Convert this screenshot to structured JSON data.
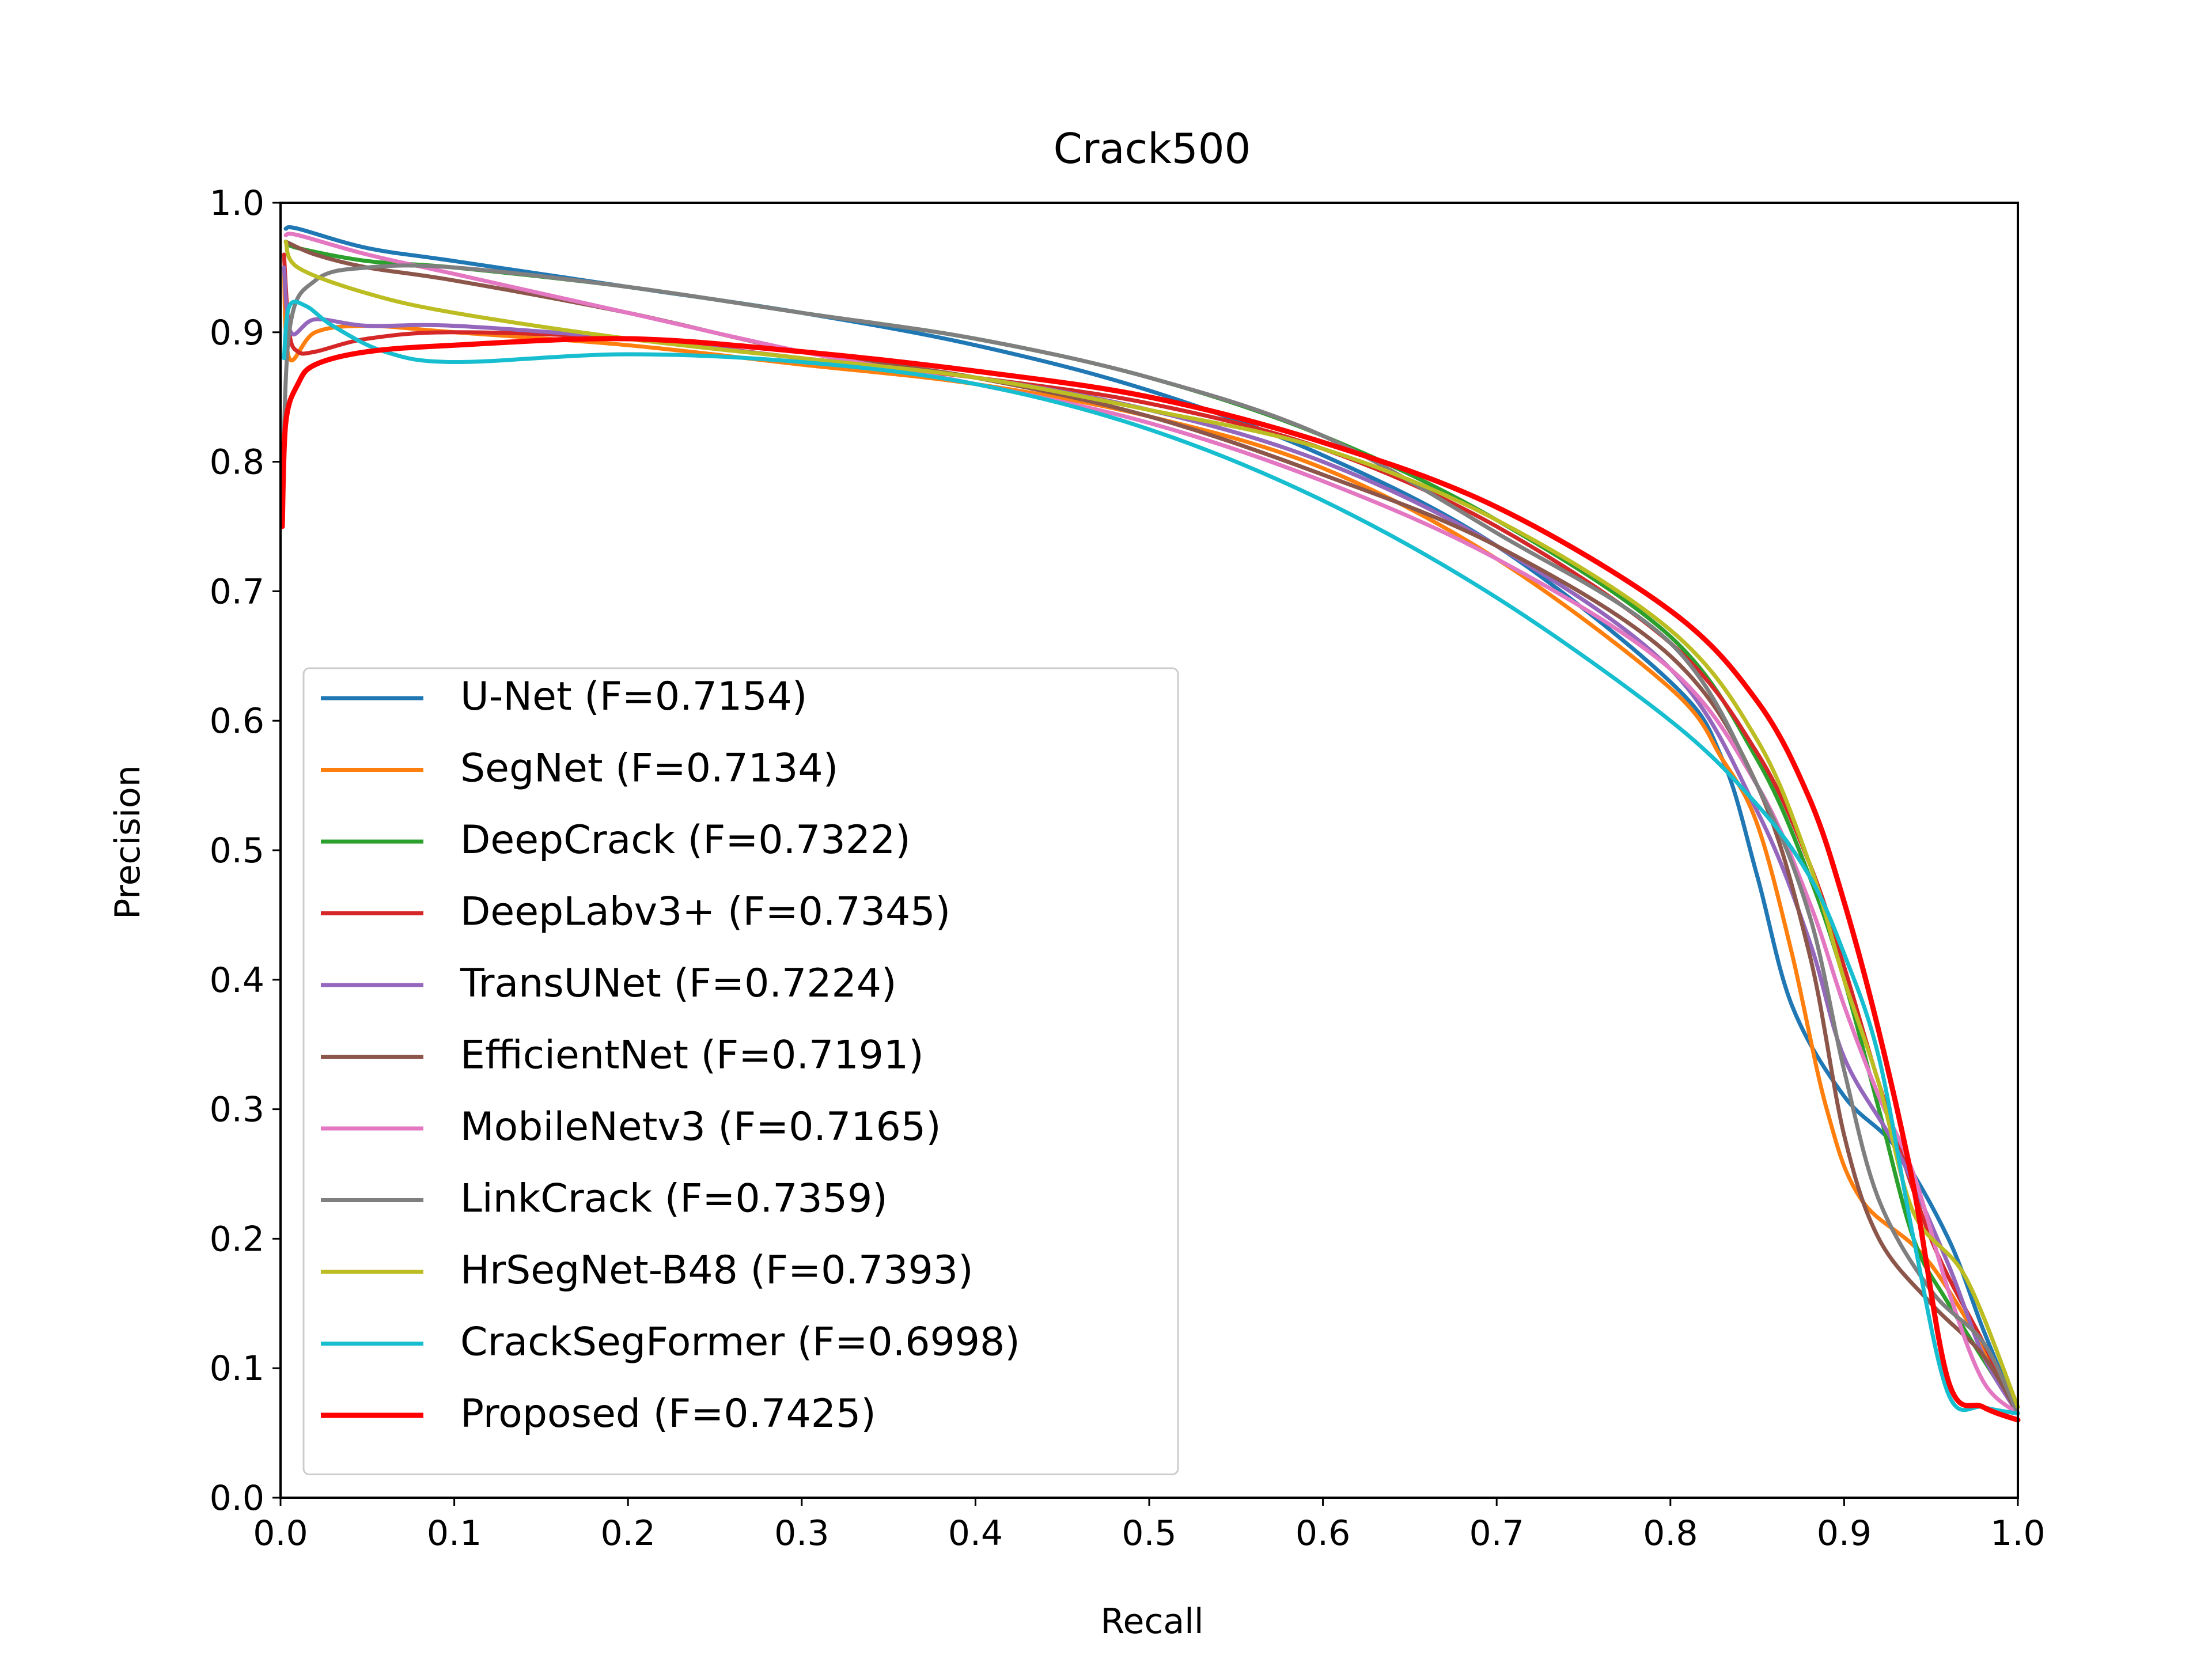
{
  "chart_data": {
    "type": "line",
    "title": "Crack500",
    "xlabel": "Recall",
    "ylabel": "Precision",
    "xlim": [
      0,
      1
    ],
    "ylim": [
      0,
      1
    ],
    "grid": false,
    "legend_position": "lower-left",
    "xticks": [
      "0.0",
      "0.1",
      "0.2",
      "0.3",
      "0.4",
      "0.5",
      "0.6",
      "0.7",
      "0.8",
      "0.9",
      "1.0"
    ],
    "yticks": [
      "0.0",
      "0.1",
      "0.2",
      "0.3",
      "0.4",
      "0.5",
      "0.6",
      "0.7",
      "0.8",
      "0.9",
      "1.0"
    ],
    "series": [
      {
        "name": "U-Net (F=0.7154)",
        "color": "#1f77b4",
        "points": [
          [
            0.003,
            0.98
          ],
          [
            0.01,
            0.98
          ],
          [
            0.05,
            0.965
          ],
          [
            0.1,
            0.955
          ],
          [
            0.2,
            0.935
          ],
          [
            0.3,
            0.915
          ],
          [
            0.4,
            0.89
          ],
          [
            0.5,
            0.855
          ],
          [
            0.6,
            0.805
          ],
          [
            0.7,
            0.735
          ],
          [
            0.8,
            0.63
          ],
          [
            0.83,
            0.57
          ],
          [
            0.85,
            0.48
          ],
          [
            0.87,
            0.38
          ],
          [
            0.9,
            0.31
          ],
          [
            0.93,
            0.27
          ],
          [
            0.96,
            0.2
          ],
          [
            0.98,
            0.13
          ],
          [
            1.0,
            0.065
          ]
        ]
      },
      {
        "name": "SegNet (F=0.7134)",
        "color": "#ff7f0e",
        "points": [
          [
            0.002,
            0.95
          ],
          [
            0.005,
            0.88
          ],
          [
            0.02,
            0.9
          ],
          [
            0.05,
            0.905
          ],
          [
            0.1,
            0.9
          ],
          [
            0.2,
            0.89
          ],
          [
            0.3,
            0.875
          ],
          [
            0.4,
            0.86
          ],
          [
            0.5,
            0.835
          ],
          [
            0.6,
            0.795
          ],
          [
            0.7,
            0.725
          ],
          [
            0.8,
            0.625
          ],
          [
            0.83,
            0.57
          ],
          [
            0.85,
            0.52
          ],
          [
            0.87,
            0.42
          ],
          [
            0.89,
            0.3
          ],
          [
            0.91,
            0.23
          ],
          [
            0.95,
            0.18
          ],
          [
            1.0,
            0.07
          ]
        ]
      },
      {
        "name": "DeepCrack (F=0.7322)",
        "color": "#2ca02c",
        "points": [
          [
            0.003,
            0.97
          ],
          [
            0.01,
            0.965
          ],
          [
            0.05,
            0.955
          ],
          [
            0.1,
            0.95
          ],
          [
            0.2,
            0.935
          ],
          [
            0.3,
            0.915
          ],
          [
            0.4,
            0.895
          ],
          [
            0.5,
            0.865
          ],
          [
            0.6,
            0.82
          ],
          [
            0.7,
            0.755
          ],
          [
            0.8,
            0.665
          ],
          [
            0.85,
            0.57
          ],
          [
            0.88,
            0.48
          ],
          [
            0.9,
            0.4
          ],
          [
            0.92,
            0.3
          ],
          [
            0.94,
            0.2
          ],
          [
            0.96,
            0.15
          ],
          [
            1.0,
            0.065
          ]
        ]
      },
      {
        "name": "DeepLabv3+ (F=0.7345)",
        "color": "#d62728",
        "points": [
          [
            0.002,
            0.96
          ],
          [
            0.005,
            0.9
          ],
          [
            0.01,
            0.885
          ],
          [
            0.02,
            0.885
          ],
          [
            0.05,
            0.895
          ],
          [
            0.1,
            0.9
          ],
          [
            0.2,
            0.895
          ],
          [
            0.3,
            0.88
          ],
          [
            0.4,
            0.865
          ],
          [
            0.5,
            0.845
          ],
          [
            0.6,
            0.81
          ],
          [
            0.7,
            0.75
          ],
          [
            0.8,
            0.66
          ],
          [
            0.85,
            0.575
          ],
          [
            0.88,
            0.49
          ],
          [
            0.9,
            0.41
          ],
          [
            0.92,
            0.32
          ],
          [
            0.95,
            0.2
          ],
          [
            0.98,
            0.12
          ],
          [
            1.0,
            0.065
          ]
        ]
      },
      {
        "name": "TransUNet (F=0.7224)",
        "color": "#9467bd",
        "points": [
          [
            0.002,
            0.95
          ],
          [
            0.006,
            0.9
          ],
          [
            0.02,
            0.91
          ],
          [
            0.05,
            0.905
          ],
          [
            0.1,
            0.905
          ],
          [
            0.2,
            0.895
          ],
          [
            0.3,
            0.88
          ],
          [
            0.4,
            0.865
          ],
          [
            0.5,
            0.84
          ],
          [
            0.6,
            0.8
          ],
          [
            0.7,
            0.735
          ],
          [
            0.8,
            0.64
          ],
          [
            0.85,
            0.53
          ],
          [
            0.88,
            0.43
          ],
          [
            0.9,
            0.34
          ],
          [
            0.93,
            0.27
          ],
          [
            0.96,
            0.18
          ],
          [
            0.98,
            0.11
          ],
          [
            1.0,
            0.065
          ]
        ]
      },
      {
        "name": "EfficientNet (F=0.7191)",
        "color": "#8c564b",
        "points": [
          [
            0.003,
            0.97
          ],
          [
            0.02,
            0.96
          ],
          [
            0.05,
            0.95
          ],
          [
            0.1,
            0.94
          ],
          [
            0.2,
            0.915
          ],
          [
            0.3,
            0.885
          ],
          [
            0.4,
            0.865
          ],
          [
            0.5,
            0.835
          ],
          [
            0.6,
            0.79
          ],
          [
            0.7,
            0.735
          ],
          [
            0.8,
            0.65
          ],
          [
            0.85,
            0.55
          ],
          [
            0.88,
            0.42
          ],
          [
            0.9,
            0.28
          ],
          [
            0.92,
            0.2
          ],
          [
            0.95,
            0.15
          ],
          [
            0.98,
            0.11
          ],
          [
            1.0,
            0.065
          ]
        ]
      },
      {
        "name": "MobileNetv3 (F=0.7165)",
        "color": "#e377c2",
        "points": [
          [
            0.003,
            0.975
          ],
          [
            0.01,
            0.975
          ],
          [
            0.05,
            0.96
          ],
          [
            0.1,
            0.945
          ],
          [
            0.2,
            0.915
          ],
          [
            0.3,
            0.885
          ],
          [
            0.4,
            0.86
          ],
          [
            0.5,
            0.83
          ],
          [
            0.6,
            0.785
          ],
          [
            0.7,
            0.725
          ],
          [
            0.8,
            0.64
          ],
          [
            0.85,
            0.55
          ],
          [
            0.88,
            0.46
          ],
          [
            0.9,
            0.38
          ],
          [
            0.92,
            0.31
          ],
          [
            0.94,
            0.25
          ],
          [
            0.96,
            0.16
          ],
          [
            0.98,
            0.09
          ],
          [
            1.0,
            0.065
          ]
        ]
      },
      {
        "name": "LinkCrack (F=0.7359)",
        "color": "#7f7f7f",
        "points": [
          [
            0.001,
            0.75
          ],
          [
            0.005,
            0.9
          ],
          [
            0.02,
            0.94
          ],
          [
            0.05,
            0.95
          ],
          [
            0.1,
            0.95
          ],
          [
            0.2,
            0.935
          ],
          [
            0.3,
            0.915
          ],
          [
            0.4,
            0.895
          ],
          [
            0.5,
            0.865
          ],
          [
            0.6,
            0.82
          ],
          [
            0.7,
            0.745
          ],
          [
            0.8,
            0.66
          ],
          [
            0.85,
            0.55
          ],
          [
            0.88,
            0.45
          ],
          [
            0.9,
            0.33
          ],
          [
            0.92,
            0.23
          ],
          [
            0.95,
            0.16
          ],
          [
            0.98,
            0.12
          ],
          [
            1.0,
            0.065
          ]
        ]
      },
      {
        "name": "HrSegNet-B48 (F=0.7393)",
        "color": "#bcbd22",
        "points": [
          [
            0.003,
            0.97
          ],
          [
            0.01,
            0.95
          ],
          [
            0.05,
            0.93
          ],
          [
            0.1,
            0.915
          ],
          [
            0.2,
            0.895
          ],
          [
            0.3,
            0.88
          ],
          [
            0.4,
            0.865
          ],
          [
            0.5,
            0.84
          ],
          [
            0.6,
            0.81
          ],
          [
            0.7,
            0.755
          ],
          [
            0.8,
            0.67
          ],
          [
            0.85,
            0.585
          ],
          [
            0.88,
            0.49
          ],
          [
            0.9,
            0.4
          ],
          [
            0.92,
            0.32
          ],
          [
            0.94,
            0.22
          ],
          [
            0.97,
            0.17
          ],
          [
            1.0,
            0.07
          ]
        ]
      },
      {
        "name": "CrackSegFormer (F=0.6998)",
        "color": "#17becf",
        "points": [
          [
            0.002,
            0.88
          ],
          [
            0.005,
            0.92
          ],
          [
            0.015,
            0.92
          ],
          [
            0.03,
            0.905
          ],
          [
            0.06,
            0.885
          ],
          [
            0.1,
            0.877
          ],
          [
            0.2,
            0.883
          ],
          [
            0.3,
            0.877
          ],
          [
            0.4,
            0.86
          ],
          [
            0.5,
            0.825
          ],
          [
            0.6,
            0.77
          ],
          [
            0.7,
            0.695
          ],
          [
            0.8,
            0.6
          ],
          [
            0.85,
            0.535
          ],
          [
            0.88,
            0.48
          ],
          [
            0.9,
            0.42
          ],
          [
            0.92,
            0.34
          ],
          [
            0.94,
            0.2
          ],
          [
            0.96,
            0.08
          ],
          [
            0.98,
            0.07
          ],
          [
            1.0,
            0.065
          ]
        ]
      },
      {
        "name": "Proposed (F=0.7425)",
        "color": "#ff0000",
        "points": [
          [
            0.001,
            0.75
          ],
          [
            0.003,
            0.83
          ],
          [
            0.01,
            0.86
          ],
          [
            0.02,
            0.875
          ],
          [
            0.05,
            0.885
          ],
          [
            0.1,
            0.89
          ],
          [
            0.2,
            0.895
          ],
          [
            0.3,
            0.885
          ],
          [
            0.4,
            0.87
          ],
          [
            0.5,
            0.85
          ],
          [
            0.6,
            0.815
          ],
          [
            0.7,
            0.765
          ],
          [
            0.8,
            0.685
          ],
          [
            0.85,
            0.615
          ],
          [
            0.88,
            0.54
          ],
          [
            0.9,
            0.46
          ],
          [
            0.92,
            0.36
          ],
          [
            0.94,
            0.24
          ],
          [
            0.96,
            0.09
          ],
          [
            0.98,
            0.07
          ],
          [
            1.0,
            0.06
          ]
        ]
      }
    ]
  }
}
